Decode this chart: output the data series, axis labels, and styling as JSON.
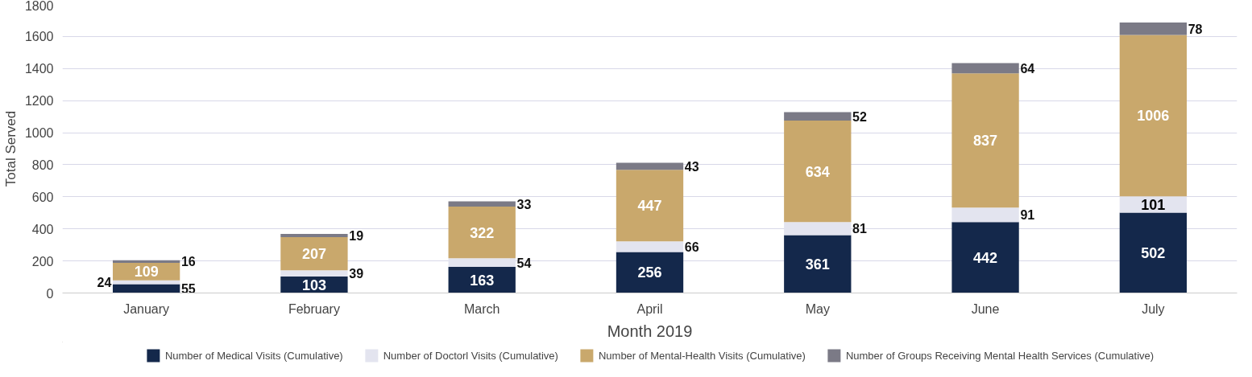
{
  "chart_data": {
    "type": "bar",
    "stacked": true,
    "xlabel": "Month 2019",
    "ylabel": "Total Served",
    "categories": [
      "January",
      "February",
      "March",
      "April",
      "May",
      "June",
      "July"
    ],
    "series": [
      {
        "name": "Number of Medical Visits (Cumulative)",
        "color": "#14284b",
        "values": [
          55,
          103,
          163,
          256,
          361,
          442,
          502
        ]
      },
      {
        "name": "Number of Doctorl Visits (Cumulative)",
        "color": "#e3e4ef",
        "values": [
          24,
          39,
          54,
          66,
          81,
          91,
          101
        ]
      },
      {
        "name": "Number of Mental-Health Visits (Cumulative)",
        "color": "#c9a86c",
        "values": [
          109,
          207,
          322,
          447,
          634,
          837,
          1006
        ]
      },
      {
        "name": "Number of Groups Receiving Mental Health Services (Cumulative)",
        "color": "#7b7a86",
        "values": [
          16,
          19,
          33,
          43,
          52,
          64,
          78
        ]
      }
    ],
    "ylim": [
      0,
      1800
    ],
    "yticks": [
      0,
      200,
      400,
      600,
      800,
      1000,
      1200,
      1400,
      1600,
      1800
    ],
    "grid": "y",
    "legend": "bottom",
    "data_labels": true
  }
}
